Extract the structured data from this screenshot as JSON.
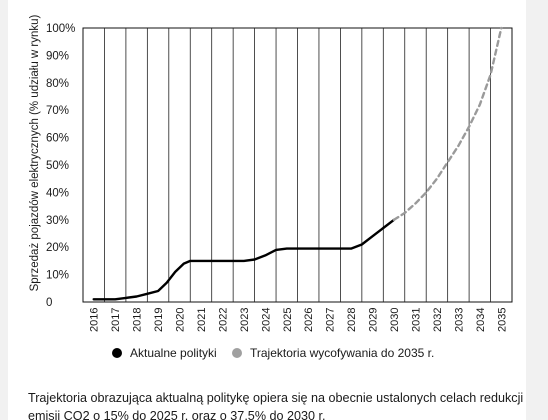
{
  "chart_data": {
    "type": "line",
    "ylabel": "Sprzedaż pojazdów elektrycznych (% udziału w rynku)",
    "x": [
      "2016",
      "2017",
      "2018",
      "2019",
      "2020",
      "2021",
      "2022",
      "2023",
      "2024",
      "2025",
      "2026",
      "2027",
      "2028",
      "2029",
      "2030",
      "2031",
      "2032",
      "2033",
      "2034",
      "2035"
    ],
    "ytick_labels": [
      "0",
      "10%",
      "20%",
      "30%",
      "40%",
      "50%",
      "60%",
      "70%",
      "80%",
      "90%",
      "100%"
    ],
    "ylim": [
      0,
      100
    ],
    "grid": "vertical",
    "series": [
      {
        "name": "Aktualne polityki",
        "color": "#000000",
        "style": "solid",
        "points": [
          [
            2016,
            1
          ],
          [
            2016.5,
            1
          ],
          [
            2017,
            1
          ],
          [
            2017.5,
            1.5
          ],
          [
            2018,
            2
          ],
          [
            2018.5,
            3
          ],
          [
            2019,
            4
          ],
          [
            2019.4,
            7
          ],
          [
            2019.8,
            11
          ],
          [
            2020.2,
            14
          ],
          [
            2020.5,
            15
          ],
          [
            2021,
            15
          ],
          [
            2022,
            15
          ],
          [
            2023,
            15
          ],
          [
            2023.5,
            15.5
          ],
          [
            2024,
            17
          ],
          [
            2024.5,
            19
          ],
          [
            2025,
            19.5
          ],
          [
            2026,
            19.5
          ],
          [
            2027,
            19.5
          ],
          [
            2028,
            19.5
          ],
          [
            2028.5,
            21
          ],
          [
            2029,
            24
          ],
          [
            2029.5,
            27
          ],
          [
            2030,
            30
          ]
        ]
      },
      {
        "name": "Trajektoria wycofywania do 2035 r.",
        "color": "#9a9a9a",
        "style": "dashed",
        "points": [
          [
            2030,
            30
          ],
          [
            2030.5,
            32.5
          ],
          [
            2031,
            36
          ],
          [
            2031.5,
            40
          ],
          [
            2032,
            45
          ],
          [
            2032.5,
            51
          ],
          [
            2033,
            57
          ],
          [
            2033.5,
            64
          ],
          [
            2034,
            72
          ],
          [
            2034.5,
            83
          ],
          [
            2035,
            100
          ]
        ]
      }
    ]
  },
  "legend": {
    "items": [
      {
        "label": "Aktualne polityki",
        "color": "#000000"
      },
      {
        "label": "Trajektoria wycofywania do 2035 r.",
        "color": "#a0a0a0"
      }
    ]
  },
  "caption": "Trajektoria obrazująca aktualną politykę opiera się na obecnie ustalonych celach redukcji emisji CO2 o 15% do 2025 r. oraz o 37,5% do 2030 r."
}
